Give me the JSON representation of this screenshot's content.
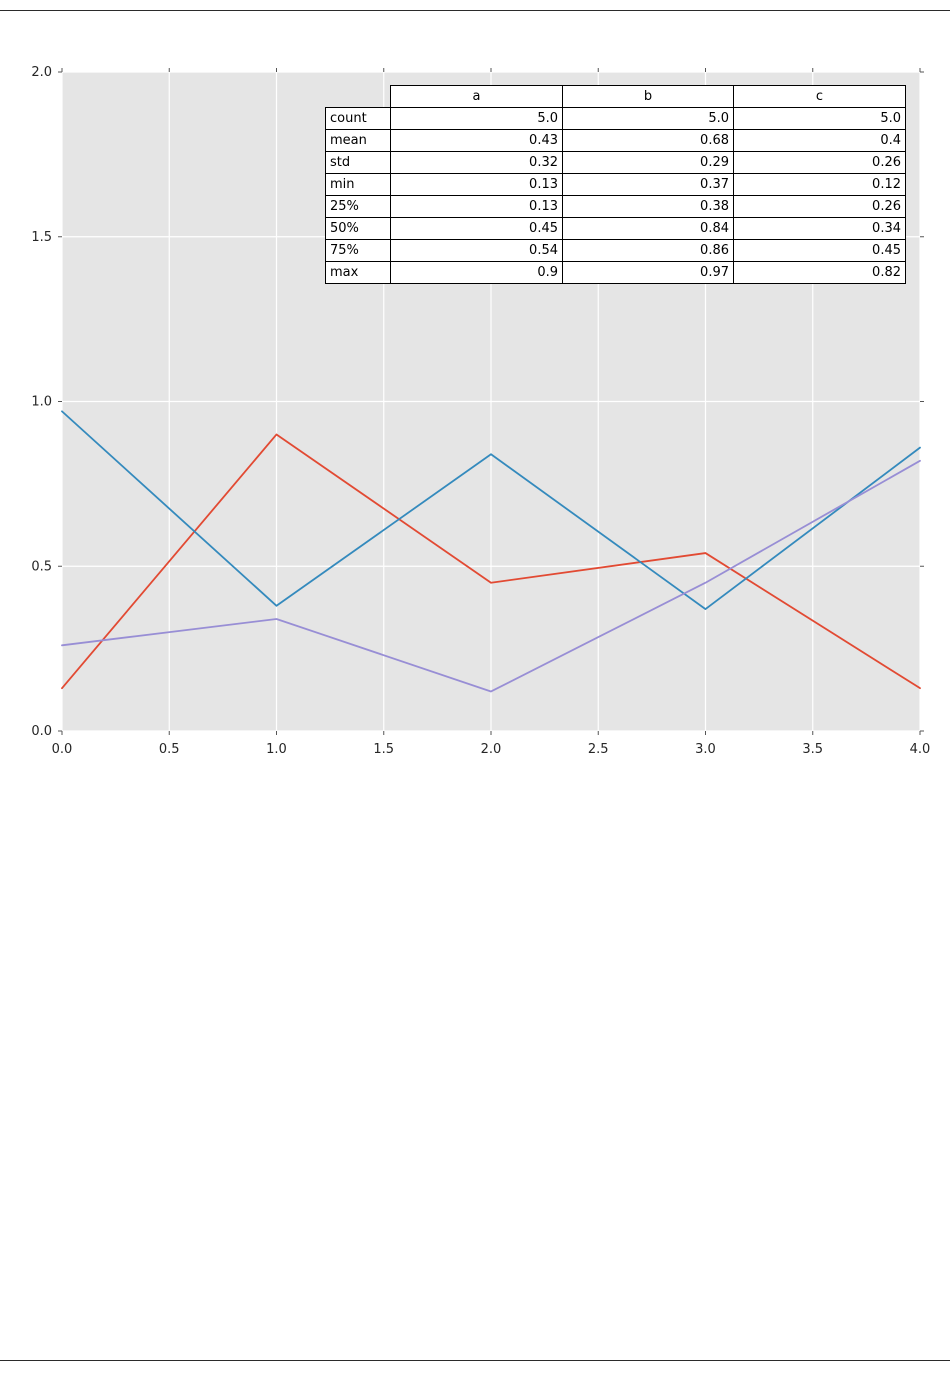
{
  "chart_data": {
    "type": "line",
    "x": [
      0,
      1,
      2,
      3,
      4
    ],
    "series": [
      {
        "name": "a",
        "color": "#E24A33",
        "values": [
          0.13,
          0.9,
          0.45,
          0.54,
          0.13
        ]
      },
      {
        "name": "b",
        "color": "#348ABD",
        "values": [
          0.97,
          0.38,
          0.84,
          0.37,
          0.86
        ]
      },
      {
        "name": "c",
        "color": "#988ED5",
        "values": [
          0.26,
          0.34,
          0.12,
          0.45,
          0.82
        ]
      }
    ],
    "title": "",
    "xlabel": "",
    "ylabel": "",
    "xlim": [
      0,
      4
    ],
    "ylim": [
      0,
      2
    ],
    "x_ticks": [
      "0.0",
      "0.5",
      "1.0",
      "1.5",
      "2.0",
      "2.5",
      "3.0",
      "3.5",
      "4.0"
    ],
    "y_ticks": [
      "0.0",
      "0.5",
      "1.0",
      "1.5",
      "2.0"
    ],
    "grid": true,
    "legend": "none",
    "plot_bg": "#e5e5e5",
    "grid_color": "#ffffff",
    "tick_color": "#555555",
    "tick_label_color": "#262626"
  },
  "stats_table": {
    "columns": [
      "a",
      "b",
      "c"
    ],
    "rows": [
      {
        "label": "count",
        "values": [
          "5.0",
          "5.0",
          "5.0"
        ]
      },
      {
        "label": "mean",
        "values": [
          "0.43",
          "0.68",
          "0.4"
        ]
      },
      {
        "label": "std",
        "values": [
          "0.32",
          "0.29",
          "0.26"
        ]
      },
      {
        "label": "min",
        "values": [
          "0.13",
          "0.37",
          "0.12"
        ]
      },
      {
        "label": "25%",
        "values": [
          "0.13",
          "0.38",
          "0.26"
        ]
      },
      {
        "label": "50%",
        "values": [
          "0.45",
          "0.84",
          "0.34"
        ]
      },
      {
        "label": "75%",
        "values": [
          "0.54",
          "0.86",
          "0.45"
        ]
      },
      {
        "label": "max",
        "values": [
          "0.9",
          "0.97",
          "0.82"
        ]
      }
    ]
  }
}
